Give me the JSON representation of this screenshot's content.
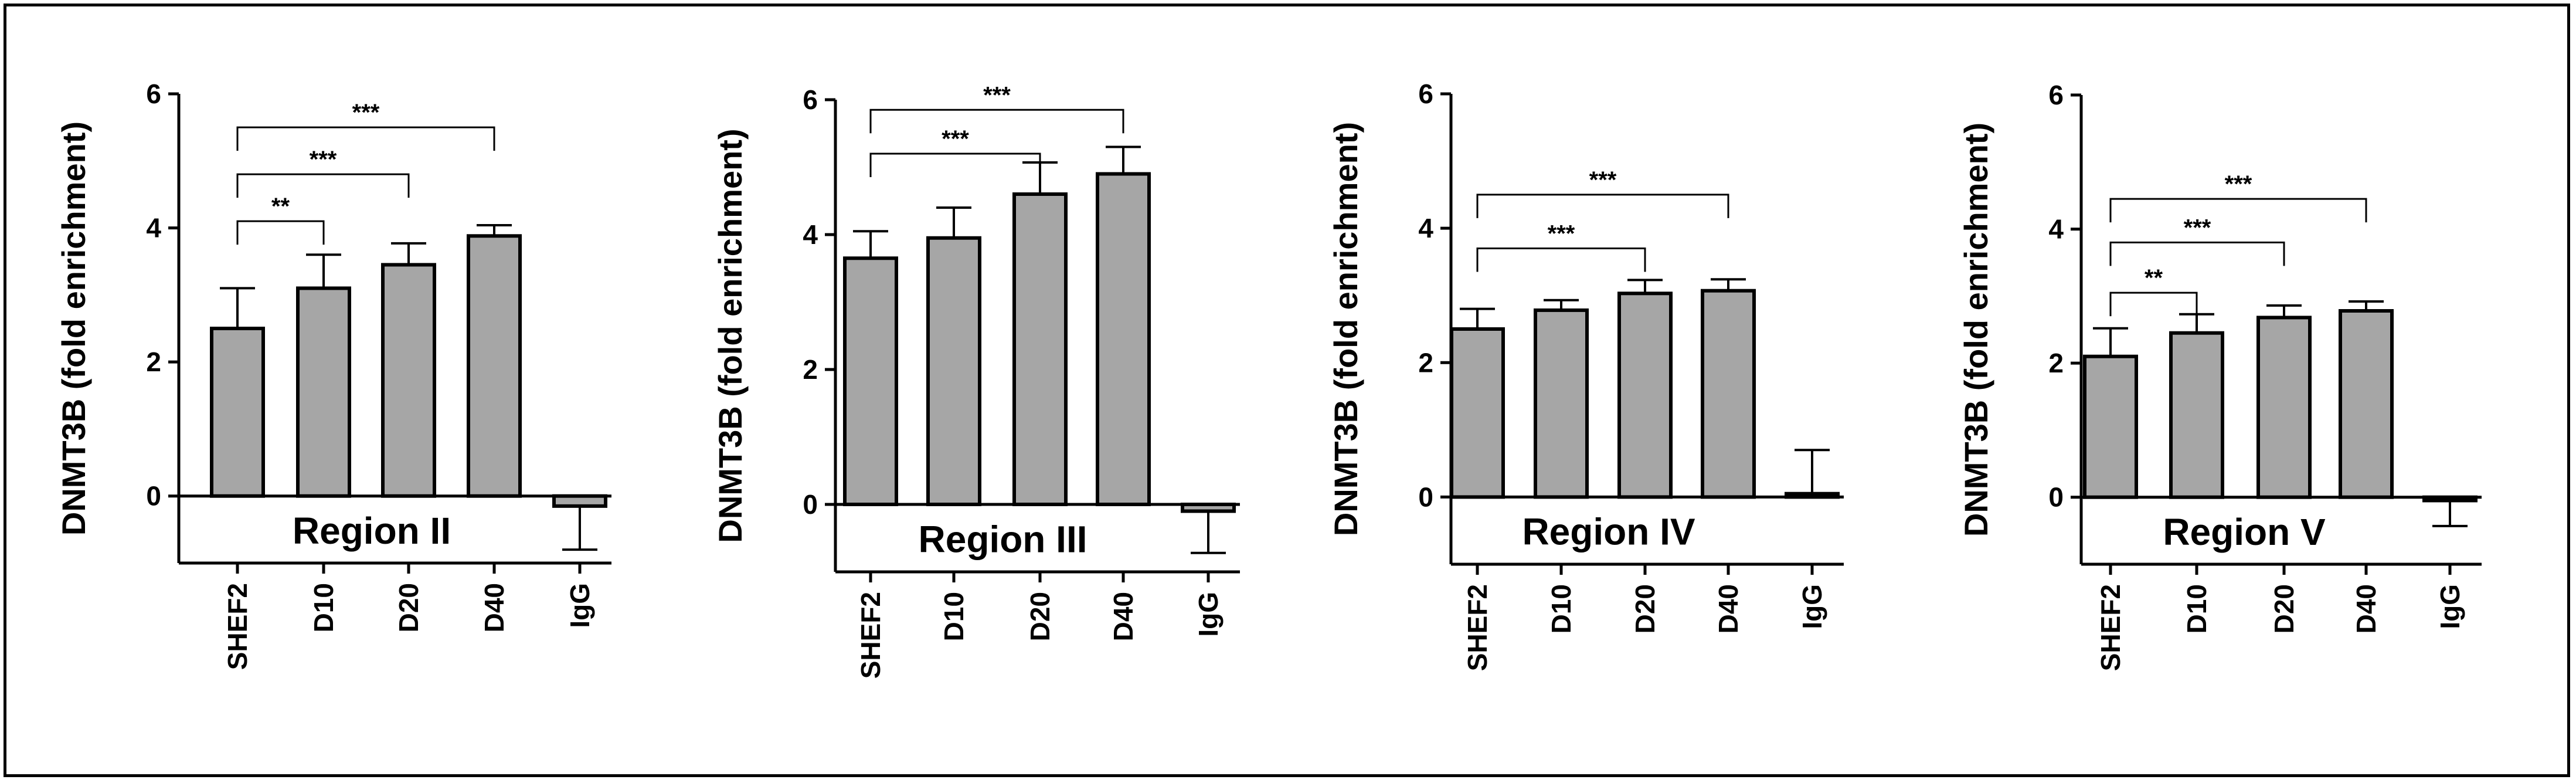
{
  "chart_data": [
    {
      "type": "bar",
      "title": "Region II",
      "ylabel": "DNMT3B (fold enrichment)",
      "categories": [
        "SHEF2",
        "D10",
        "D20",
        "D40",
        "IgG"
      ],
      "values": [
        2.5,
        3.1,
        3.45,
        3.88,
        -0.15
      ],
      "errors": [
        0.6,
        0.5,
        0.32,
        0.16,
        0.65
      ],
      "ylim": [
        -1,
        6
      ],
      "yticks": [
        "0",
        "2",
        "4",
        "6"
      ],
      "significance": [
        {
          "from": "SHEF2",
          "to": "D10",
          "label": "**",
          "y": 4.1
        },
        {
          "from": "SHEF2",
          "to": "D20",
          "label": "***",
          "y": 4.8
        },
        {
          "from": "SHEF2",
          "to": "D40",
          "label": "***",
          "y": 5.5
        }
      ]
    },
    {
      "type": "bar",
      "title": "Region III",
      "ylabel": "DNMT3B (fold enrichment)",
      "categories": [
        "SHEF2",
        "D10",
        "D20",
        "D40",
        "IgG"
      ],
      "values": [
        3.65,
        3.95,
        4.6,
        4.9,
        -0.1
      ],
      "errors": [
        0.4,
        0.45,
        0.47,
        0.4,
        0.62
      ],
      "ylim": [
        -1,
        6
      ],
      "yticks": [
        "0",
        "2",
        "4",
        "6"
      ],
      "significance": [
        {
          "from": "SHEF2",
          "to": "D20",
          "label": "***",
          "y": 5.2
        },
        {
          "from": "SHEF2",
          "to": "D40",
          "label": "***",
          "y": 5.85
        }
      ]
    },
    {
      "type": "bar",
      "title": "Region IV",
      "ylabel": "DNMT3B (fold enrichment)",
      "categories": [
        "SHEF2",
        "D10",
        "D20",
        "D40",
        "IgG"
      ],
      "values": [
        2.5,
        2.78,
        3.03,
        3.07,
        0.05
      ],
      "errors": [
        0.3,
        0.15,
        0.2,
        0.17,
        0.65
      ],
      "ylim": [
        -1,
        6
      ],
      "yticks": [
        "0",
        "2",
        "4",
        "6"
      ],
      "significance": [
        {
          "from": "SHEF2",
          "to": "D20",
          "label": "***",
          "y": 3.7
        },
        {
          "from": "SHEF2",
          "to": "D40",
          "label": "***",
          "y": 4.5
        }
      ]
    },
    {
      "type": "bar",
      "title": "Region V",
      "ylabel": "DNMT3B (fold enrichment)",
      "categories": [
        "SHEF2",
        "D10",
        "D20",
        "D40",
        "IgG"
      ],
      "values": [
        2.1,
        2.45,
        2.68,
        2.78,
        -0.05
      ],
      "errors": [
        0.42,
        0.28,
        0.18,
        0.14,
        0.38
      ],
      "ylim": [
        -1,
        6
      ],
      "yticks": [
        "0",
        "2",
        "4",
        "6"
      ],
      "significance": [
        {
          "from": "SHEF2",
          "to": "D10",
          "label": "**",
          "y": 3.05
        },
        {
          "from": "SHEF2",
          "to": "D20",
          "label": "***",
          "y": 3.8
        },
        {
          "from": "SHEF2",
          "to": "D40",
          "label": "***",
          "y": 4.45
        }
      ]
    }
  ],
  "colors": {
    "bar_fill": "#a6a6a6",
    "stroke": "#000000",
    "background": "#ffffff"
  }
}
